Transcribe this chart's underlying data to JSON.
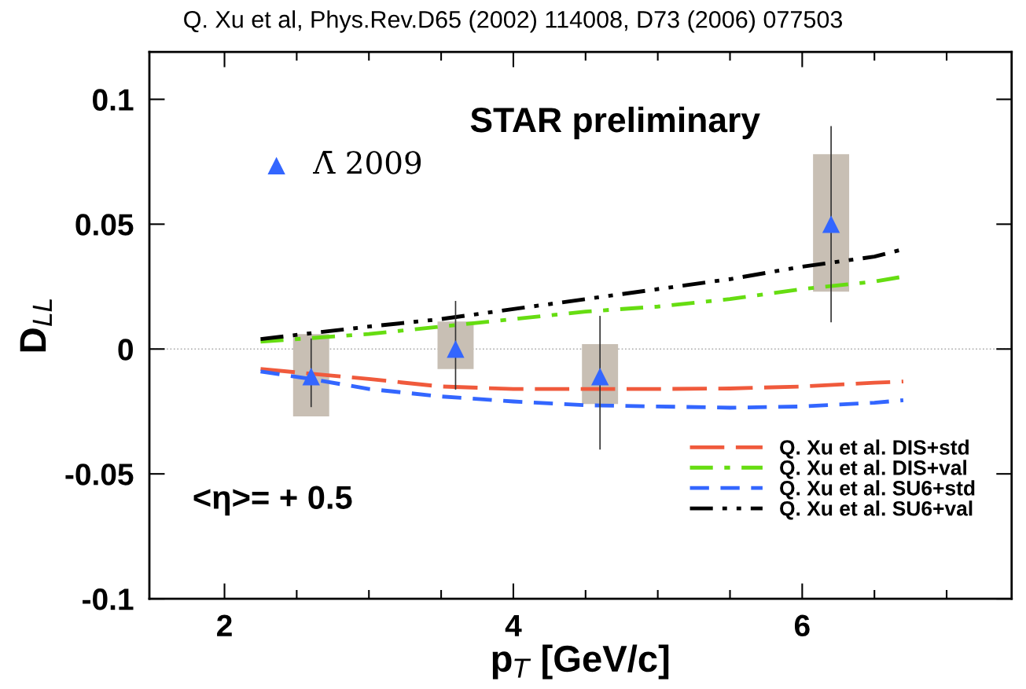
{
  "chart_data": {
    "type": "line",
    "title": "Q. Xu et al, Phys.Rev.D65 (2002) 114008, D73 (2006) 077503",
    "xlabel": "p$_{T}$ [GeV/c]",
    "ylabel": "D$_{LL}$",
    "annotations": [
      "STAR preliminary",
      "<η>= + 0.5"
    ],
    "xlim": [
      1.48,
      7.45
    ],
    "ylim": [
      -0.1,
      0.119
    ],
    "xticks": [
      2,
      {
        "value": 2.5,
        "label": null
      },
      {
        "value": 3,
        "label": null
      },
      {
        "value": 3.5,
        "label": null
      },
      4,
      {
        "value": 4.5,
        "label": null
      },
      {
        "value": 5,
        "label": null
      },
      {
        "value": 5.5,
        "label": null
      },
      6,
      {
        "value": 6.5,
        "label": null
      },
      {
        "value": 7,
        "label": null
      }
    ],
    "yticks": [
      -0.1,
      -0.05,
      0,
      0.05,
      0.1
    ],
    "ref_lines": [
      {
        "axis": "y",
        "value": 0,
        "label": null,
        "color": "#aaaaaa",
        "line_style": "dotted"
      }
    ],
    "legend": "bottom right",
    "grid": false,
    "series": [
      {
        "type": "bar",
        "color": "#c8bfb4",
        "x": [
          2.6,
          3.6,
          4.6,
          6.2
        ],
        "base": [
          -0.027,
          -0.008,
          -0.022,
          0.023
        ],
        "values": [
          0.033,
          0.019,
          0.024,
          0.055
        ]
      },
      {
        "type": "scatter",
        "name": "Λ̄ 2009",
        "color": "#3366ff",
        "marker": "triangle",
        "x": [
          2.6,
          3.6,
          4.6,
          6.2
        ],
        "values": [
          -0.011,
          0.0,
          -0.011,
          0.05
        ],
        "errors": [
          [
            -0.023,
            0.004
          ],
          [
            -0.016,
            0.019
          ],
          [
            -0.04,
            0.013
          ],
          [
            0.011,
            0.089
          ]
        ]
      },
      {
        "name": "Q. Xu et al. DIS+std",
        "color": "#f05a3c",
        "line_style": "longdash",
        "x": [
          2.25,
          3,
          3.5,
          4,
          4.5,
          5,
          5.5,
          6,
          6.5,
          6.7
        ],
        "values": [
          -0.008,
          -0.012,
          -0.015,
          -0.016,
          -0.016,
          -0.016,
          -0.0158,
          -0.015,
          -0.0135,
          -0.013
        ]
      },
      {
        "name": "Q. Xu et al. DIS+val",
        "color": "#66dd11",
        "line_style": "dashdot",
        "x": [
          2.25,
          3,
          3.5,
          4,
          4.5,
          5,
          5.5,
          6,
          6.5,
          6.7
        ],
        "values": [
          0.003,
          0.006,
          0.009,
          0.012,
          0.015,
          0.017,
          0.02,
          0.024,
          0.027,
          0.029
        ]
      },
      {
        "name": "Q. Xu et al. SU6+std",
        "color": "#3366ff",
        "line_style": "dashed",
        "x": [
          2.25,
          2.6,
          3,
          3.5,
          4,
          4.5,
          5,
          5.5,
          6,
          6.5,
          6.7
        ],
        "values": [
          -0.009,
          -0.012,
          -0.016,
          -0.019,
          -0.021,
          -0.0225,
          -0.023,
          -0.0235,
          -0.023,
          -0.0215,
          -0.0205
        ]
      },
      {
        "name": "Q. Xu et al. SU6+val",
        "color": "#000000",
        "line_style": "dashdotdot",
        "x": [
          2.25,
          3,
          3.5,
          4,
          4.5,
          5,
          5.5,
          6,
          6.5,
          6.7
        ],
        "values": [
          0.004,
          0.009,
          0.012,
          0.016,
          0.02,
          0.024,
          0.028,
          0.033,
          0.037,
          0.04
        ]
      }
    ]
  }
}
